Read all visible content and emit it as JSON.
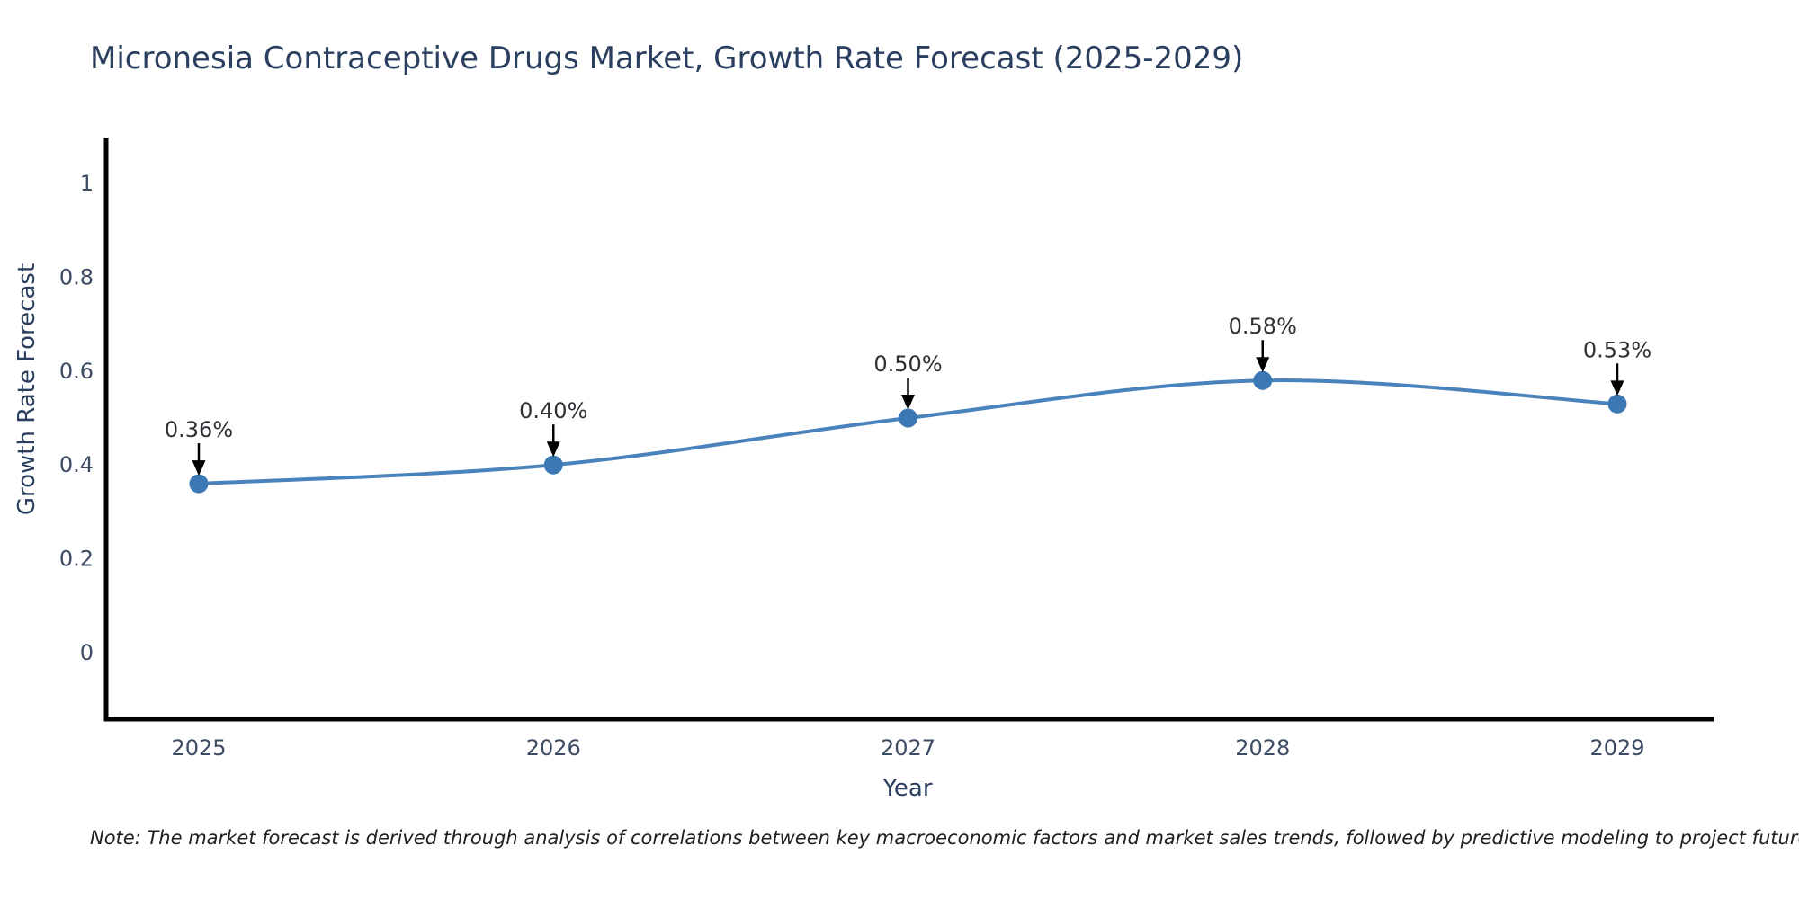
{
  "title": "Micronesia Contraceptive Drugs Market, Growth Rate Forecast (2025-2029)",
  "note": "Note: The market forecast is derived through analysis of correlations between key macroeconomic factors and market sales trends, followed by predictive modeling to project future sales",
  "chart_data": {
    "type": "line",
    "title": "Micronesia Contraceptive Drugs Market, Growth Rate Forecast (2025-2029)",
    "xlabel": "Year",
    "ylabel": "Growth Rate Forecast",
    "categories": [
      "2025",
      "2026",
      "2027",
      "2028",
      "2029"
    ],
    "values": [
      0.36,
      0.4,
      0.5,
      0.58,
      0.53
    ],
    "point_labels": [
      "0.36%",
      "0.40%",
      "0.50%",
      "0.58%",
      "0.53%"
    ],
    "line_shape": "spline",
    "grid": false,
    "legend": "none",
    "ylim": [
      -0.14,
      1.1
    ],
    "yticks": [
      0,
      0.2,
      0.4,
      0.6,
      0.8,
      1
    ],
    "ytick_labels": [
      "0",
      "0.2",
      "0.4",
      "0.6",
      "0.8",
      "1"
    ],
    "annotation_arrows": true,
    "colors": {
      "line": "#4a82bc",
      "marker": "#3c79b4",
      "axis": "#000000",
      "arrow": "#000000",
      "title_text": "#2a3f5f",
      "tick_text": "#3d4c63",
      "annotation_text": "#2f2f36",
      "note_text": "#1f1f1f",
      "background": "#ffffff"
    }
  }
}
